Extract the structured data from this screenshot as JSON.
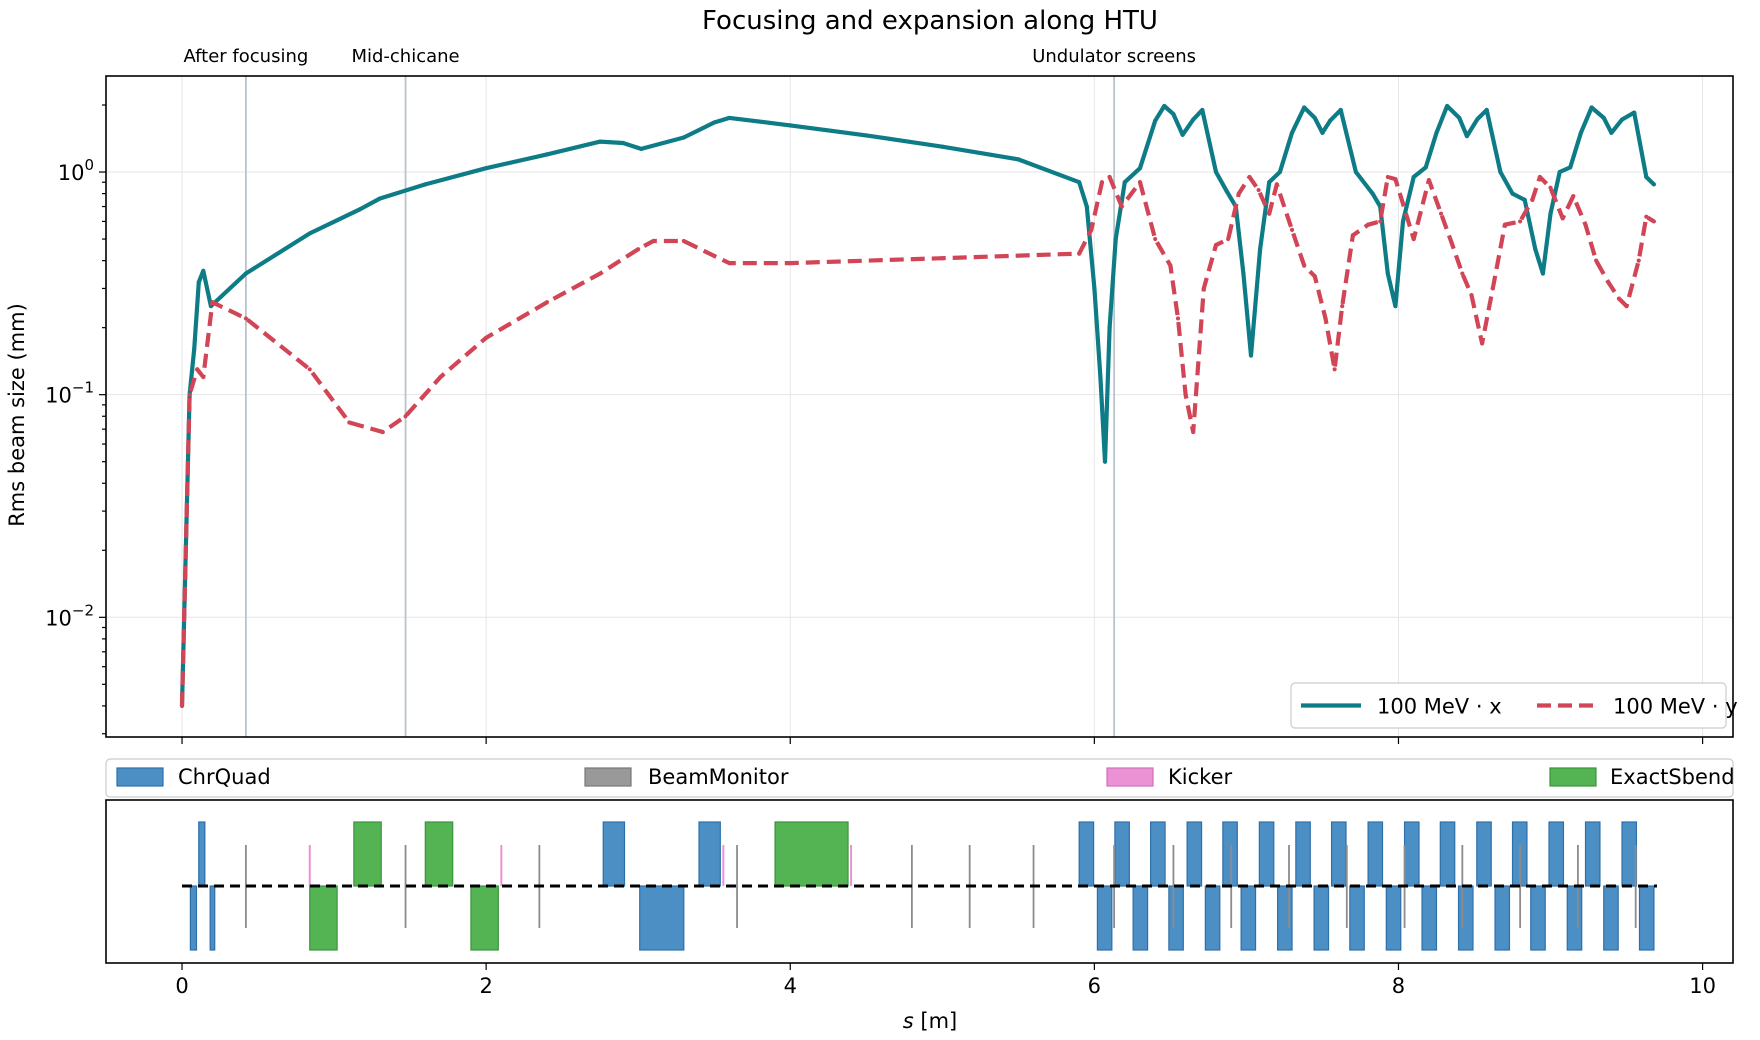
{
  "chart_data": {
    "type": "line",
    "title": "Focusing and expansion along HTU",
    "xlabel_italic": "s",
    "xlabel_rest": " [m]",
    "ylabel": "Rms beam size (mm)",
    "yscale": "log",
    "xlim": [
      -0.5,
      10.2
    ],
    "ylim": [
      0.0029,
      2.7
    ],
    "xticks": [
      0,
      2,
      4,
      6,
      8,
      10
    ],
    "yticks": [
      {
        "value": 0.01,
        "base": "10",
        "exp": "−2"
      },
      {
        "value": 0.1,
        "base": "10",
        "exp": "−1"
      },
      {
        "value": 1,
        "base": "10",
        "exp": "0"
      }
    ],
    "grid": true,
    "vlines": [
      {
        "x": 0.42,
        "label": "After focusing"
      },
      {
        "x": 1.47,
        "label": "Mid-chicane"
      },
      {
        "x": 6.13,
        "label": "Undulator screens"
      }
    ],
    "legend_position": "lower-right",
    "series": [
      {
        "name": "100 MeV · x",
        "color": "#0e7c86",
        "dash": "solid",
        "points": [
          [
            0,
            0.004
          ],
          [
            0.05,
            0.1
          ],
          [
            0.08,
            0.16
          ],
          [
            0.11,
            0.32
          ],
          [
            0.14,
            0.36
          ],
          [
            0.19,
            0.25
          ],
          [
            0.42,
            0.35
          ],
          [
            0.84,
            0.53
          ],
          [
            1.17,
            0.68
          ],
          [
            1.3,
            0.76
          ],
          [
            1.6,
            0.88
          ],
          [
            2.0,
            1.04
          ],
          [
            2.4,
            1.2
          ],
          [
            2.75,
            1.37
          ],
          [
            2.9,
            1.35
          ],
          [
            3.02,
            1.27
          ],
          [
            3.3,
            1.43
          ],
          [
            3.5,
            1.67
          ],
          [
            3.6,
            1.75
          ],
          [
            4.0,
            1.62
          ],
          [
            4.5,
            1.46
          ],
          [
            5.0,
            1.3
          ],
          [
            5.5,
            1.14
          ],
          [
            5.9,
            0.9
          ],
          [
            5.95,
            0.7
          ],
          [
            6.0,
            0.3
          ],
          [
            6.04,
            0.12
          ],
          [
            6.07,
            0.05
          ],
          [
            6.1,
            0.2
          ],
          [
            6.14,
            0.5
          ],
          [
            6.2,
            0.9
          ],
          [
            6.3,
            1.04
          ],
          [
            6.4,
            1.7
          ],
          [
            6.46,
            1.98
          ],
          [
            6.52,
            1.82
          ],
          [
            6.58,
            1.47
          ],
          [
            6.65,
            1.72
          ],
          [
            6.71,
            1.9
          ],
          [
            6.8,
            1.0
          ],
          [
            6.87,
            0.82
          ],
          [
            6.93,
            0.7
          ],
          [
            6.98,
            0.35
          ],
          [
            7.03,
            0.15
          ],
          [
            7.09,
            0.45
          ],
          [
            7.15,
            0.9
          ],
          [
            7.22,
            1.0
          ],
          [
            7.3,
            1.5
          ],
          [
            7.38,
            1.95
          ],
          [
            7.45,
            1.75
          ],
          [
            7.5,
            1.5
          ],
          [
            7.55,
            1.7
          ],
          [
            7.62,
            1.9
          ],
          [
            7.72,
            1.0
          ],
          [
            7.83,
            0.8
          ],
          [
            7.88,
            0.7
          ],
          [
            7.93,
            0.35
          ],
          [
            7.98,
            0.25
          ],
          [
            8.03,
            0.6
          ],
          [
            8.1,
            0.95
          ],
          [
            8.18,
            1.05
          ],
          [
            8.25,
            1.5
          ],
          [
            8.32,
            1.98
          ],
          [
            8.4,
            1.75
          ],
          [
            8.45,
            1.45
          ],
          [
            8.52,
            1.73
          ],
          [
            8.58,
            1.9
          ],
          [
            8.67,
            1.0
          ],
          [
            8.75,
            0.8
          ],
          [
            8.83,
            0.75
          ],
          [
            8.9,
            0.45
          ],
          [
            8.95,
            0.35
          ],
          [
            9.0,
            0.65
          ],
          [
            9.06,
            1.0
          ],
          [
            9.13,
            1.05
          ],
          [
            9.2,
            1.5
          ],
          [
            9.27,
            1.95
          ],
          [
            9.35,
            1.75
          ],
          [
            9.4,
            1.5
          ],
          [
            9.47,
            1.72
          ],
          [
            9.55,
            1.85
          ],
          [
            9.63,
            0.95
          ],
          [
            9.68,
            0.88
          ]
        ]
      },
      {
        "name": "100 MeV · y",
        "color": "#d14556",
        "dash": "dashed",
        "points": [
          [
            0,
            0.004
          ],
          [
            0.05,
            0.1
          ],
          [
            0.1,
            0.13
          ],
          [
            0.14,
            0.12
          ],
          [
            0.2,
            0.26
          ],
          [
            0.42,
            0.22
          ],
          [
            0.84,
            0.13
          ],
          [
            1.1,
            0.075
          ],
          [
            1.32,
            0.068
          ],
          [
            1.47,
            0.08
          ],
          [
            1.7,
            0.12
          ],
          [
            2.0,
            0.18
          ],
          [
            2.4,
            0.26
          ],
          [
            2.75,
            0.35
          ],
          [
            3.0,
            0.45
          ],
          [
            3.1,
            0.49
          ],
          [
            3.3,
            0.49
          ],
          [
            3.5,
            0.42
          ],
          [
            3.6,
            0.39
          ],
          [
            4.0,
            0.39
          ],
          [
            5.0,
            0.41
          ],
          [
            5.9,
            0.43
          ],
          [
            5.98,
            0.55
          ],
          [
            6.05,
            0.9
          ],
          [
            6.1,
            0.95
          ],
          [
            6.18,
            0.7
          ],
          [
            6.3,
            0.9
          ],
          [
            6.4,
            0.5
          ],
          [
            6.5,
            0.38
          ],
          [
            6.55,
            0.22
          ],
          [
            6.6,
            0.1
          ],
          [
            6.65,
            0.068
          ],
          [
            6.72,
            0.3
          ],
          [
            6.8,
            0.47
          ],
          [
            6.88,
            0.5
          ],
          [
            6.95,
            0.8
          ],
          [
            7.02,
            0.95
          ],
          [
            7.08,
            0.83
          ],
          [
            7.15,
            0.65
          ],
          [
            7.2,
            0.88
          ],
          [
            7.3,
            0.55
          ],
          [
            7.38,
            0.38
          ],
          [
            7.45,
            0.34
          ],
          [
            7.52,
            0.22
          ],
          [
            7.58,
            0.13
          ],
          [
            7.63,
            0.25
          ],
          [
            7.7,
            0.52
          ],
          [
            7.8,
            0.58
          ],
          [
            7.88,
            0.6
          ],
          [
            7.93,
            0.95
          ],
          [
            7.98,
            0.93
          ],
          [
            8.03,
            0.72
          ],
          [
            8.1,
            0.5
          ],
          [
            8.2,
            0.92
          ],
          [
            8.28,
            0.65
          ],
          [
            8.35,
            0.48
          ],
          [
            8.42,
            0.35
          ],
          [
            8.48,
            0.28
          ],
          [
            8.55,
            0.17
          ],
          [
            8.62,
            0.3
          ],
          [
            8.7,
            0.58
          ],
          [
            8.8,
            0.6
          ],
          [
            8.88,
            0.75
          ],
          [
            8.93,
            0.95
          ],
          [
            9.0,
            0.85
          ],
          [
            9.08,
            0.62
          ],
          [
            9.15,
            0.78
          ],
          [
            9.23,
            0.58
          ],
          [
            9.3,
            0.4
          ],
          [
            9.38,
            0.32
          ],
          [
            9.45,
            0.27
          ],
          [
            9.5,
            0.25
          ],
          [
            9.58,
            0.4
          ],
          [
            9.63,
            0.63
          ],
          [
            9.68,
            0.6
          ]
        ]
      }
    ],
    "lattice": {
      "legend": [
        {
          "name": "ChrQuad",
          "color": "#4c8fc5",
          "edge": "#2f6fa8"
        },
        {
          "name": "BeamMonitor",
          "color": "#999999",
          "edge": "#777777"
        },
        {
          "name": "Kicker",
          "color": "#ea92d3",
          "edge": "#d36fbd"
        },
        {
          "name": "ExactSbend",
          "color": "#54b454",
          "edge": "#3b943b"
        }
      ],
      "beamline_end": 9.7,
      "elements": [
        {
          "type": "ChrQuad",
          "s": 0.055,
          "len": 0.04,
          "dir": -1
        },
        {
          "type": "ChrQuad",
          "s": 0.11,
          "len": 0.04,
          "dir": 1
        },
        {
          "type": "ChrQuad",
          "s": 0.185,
          "len": 0.03,
          "dir": -1
        },
        {
          "type": "BeamMonitor",
          "s": 0.42,
          "dir": 0
        },
        {
          "type": "Kicker",
          "s": 0.84,
          "dir": 1
        },
        {
          "type": "ExactSbend",
          "s": 0.84,
          "len": 0.18,
          "dir": -1
        },
        {
          "type": "ExactSbend",
          "s": 1.13,
          "len": 0.18,
          "dir": 1
        },
        {
          "type": "BeamMonitor",
          "s": 1.47,
          "dir": 0
        },
        {
          "type": "ExactSbend",
          "s": 1.6,
          "len": 0.18,
          "dir": 1
        },
        {
          "type": "ExactSbend",
          "s": 1.9,
          "len": 0.18,
          "dir": -1
        },
        {
          "type": "Kicker",
          "s": 2.1,
          "dir": 1
        },
        {
          "type": "BeamMonitor",
          "s": 2.35,
          "dir": 0
        },
        {
          "type": "ChrQuad",
          "s": 2.77,
          "len": 0.14,
          "dir": 1
        },
        {
          "type": "ChrQuad",
          "s": 3.01,
          "len": 0.29,
          "dir": -1
        },
        {
          "type": "ChrQuad",
          "s": 3.4,
          "len": 0.14,
          "dir": 1
        },
        {
          "type": "Kicker",
          "s": 3.56,
          "dir": 1
        },
        {
          "type": "BeamMonitor",
          "s": 3.65,
          "dir": 0
        },
        {
          "type": "ExactSbend",
          "s": 3.9,
          "len": 0.48,
          "dir": 1
        },
        {
          "type": "Kicker",
          "s": 4.4,
          "dir": 1
        },
        {
          "type": "BeamMonitor",
          "s": 4.8,
          "dir": 0
        },
        {
          "type": "BeamMonitor",
          "s": 5.18,
          "dir": 0
        },
        {
          "type": "BeamMonitor",
          "s": 5.6,
          "dir": 0
        },
        {
          "type": "ChrQuad",
          "s": 5.9,
          "len": 0.095,
          "dir": 1
        },
        {
          "type": "ChrQuad",
          "s": 6.02,
          "len": 0.095,
          "dir": -1
        },
        {
          "type": "ChrQuad",
          "s": 6.135,
          "len": 0.095,
          "dir": 1
        },
        {
          "type": "ChrQuad",
          "s": 6.37,
          "len": 0.095,
          "dir": 1
        },
        {
          "type": "ChrQuad",
          "s": 6.61,
          "len": 0.095,
          "dir": 1
        },
        {
          "type": "ChrQuad",
          "s": 6.845,
          "len": 0.095,
          "dir": 1
        },
        {
          "type": "ChrQuad",
          "s": 7.085,
          "len": 0.095,
          "dir": 1
        },
        {
          "type": "ChrQuad",
          "s": 7.325,
          "len": 0.095,
          "dir": 1
        },
        {
          "type": "ChrQuad",
          "s": 7.56,
          "len": 0.095,
          "dir": 1
        },
        {
          "type": "ChrQuad",
          "s": 7.8,
          "len": 0.095,
          "dir": 1
        },
        {
          "type": "ChrQuad",
          "s": 8.04,
          "len": 0.095,
          "dir": 1
        },
        {
          "type": "ChrQuad",
          "s": 8.275,
          "len": 0.095,
          "dir": 1
        },
        {
          "type": "ChrQuad",
          "s": 8.515,
          "len": 0.095,
          "dir": 1
        },
        {
          "type": "ChrQuad",
          "s": 8.75,
          "len": 0.095,
          "dir": 1
        },
        {
          "type": "ChrQuad",
          "s": 8.99,
          "len": 0.095,
          "dir": 1
        },
        {
          "type": "ChrQuad",
          "s": 9.23,
          "len": 0.095,
          "dir": 1
        },
        {
          "type": "ChrQuad",
          "s": 9.47,
          "len": 0.095,
          "dir": 1
        },
        {
          "type": "ChrQuad",
          "s": 6.255,
          "len": 0.095,
          "dir": -1
        },
        {
          "type": "ChrQuad",
          "s": 6.49,
          "len": 0.095,
          "dir": -1
        },
        {
          "type": "ChrQuad",
          "s": 6.73,
          "len": 0.095,
          "dir": -1
        },
        {
          "type": "ChrQuad",
          "s": 6.965,
          "len": 0.095,
          "dir": -1
        },
        {
          "type": "ChrQuad",
          "s": 7.205,
          "len": 0.095,
          "dir": -1
        },
        {
          "type": "ChrQuad",
          "s": 7.445,
          "len": 0.095,
          "dir": -1
        },
        {
          "type": "ChrQuad",
          "s": 7.68,
          "len": 0.095,
          "dir": -1
        },
        {
          "type": "ChrQuad",
          "s": 7.92,
          "len": 0.095,
          "dir": -1
        },
        {
          "type": "ChrQuad",
          "s": 8.155,
          "len": 0.095,
          "dir": -1
        },
        {
          "type": "ChrQuad",
          "s": 8.395,
          "len": 0.095,
          "dir": -1
        },
        {
          "type": "ChrQuad",
          "s": 8.635,
          "len": 0.095,
          "dir": -1
        },
        {
          "type": "ChrQuad",
          "s": 8.87,
          "len": 0.095,
          "dir": -1
        },
        {
          "type": "ChrQuad",
          "s": 9.11,
          "len": 0.095,
          "dir": -1
        },
        {
          "type": "ChrQuad",
          "s": 9.35,
          "len": 0.095,
          "dir": -1
        },
        {
          "type": "ChrQuad",
          "s": 9.585,
          "len": 0.095,
          "dir": -1
        },
        {
          "type": "BeamMonitor",
          "s": 6.13,
          "dir": 0
        },
        {
          "type": "BeamMonitor",
          "s": 6.52,
          "dir": 0
        },
        {
          "type": "BeamMonitor",
          "s": 6.9,
          "dir": 0
        },
        {
          "type": "BeamMonitor",
          "s": 7.28,
          "dir": 0
        },
        {
          "type": "BeamMonitor",
          "s": 7.66,
          "dir": 0
        },
        {
          "type": "BeamMonitor",
          "s": 8.04,
          "dir": 0
        },
        {
          "type": "BeamMonitor",
          "s": 8.42,
          "dir": 0
        },
        {
          "type": "BeamMonitor",
          "s": 8.8,
          "dir": 0
        },
        {
          "type": "BeamMonitor",
          "s": 9.18,
          "dir": 0
        },
        {
          "type": "BeamMonitor",
          "s": 9.56,
          "dir": 0
        }
      ]
    }
  }
}
